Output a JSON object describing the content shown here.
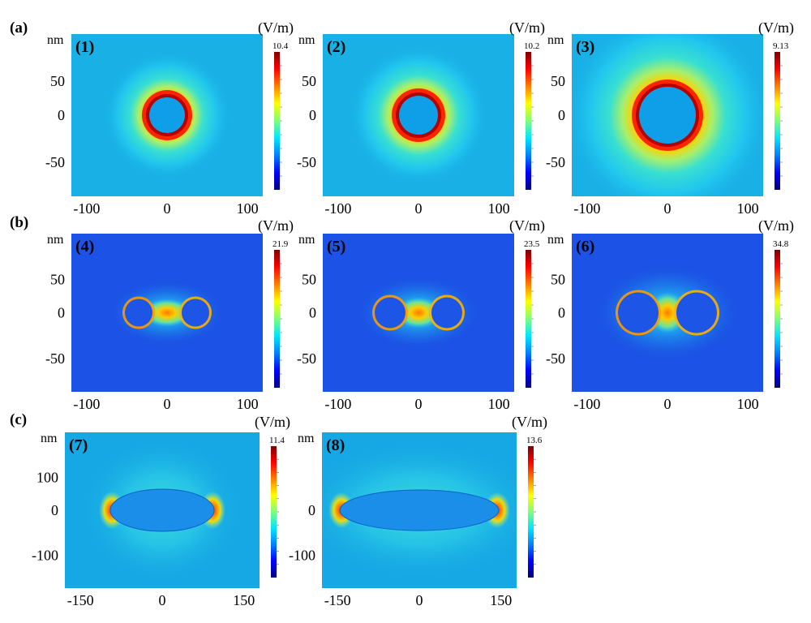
{
  "figure": {
    "row_labels": [
      "(a)",
      "(b)",
      "(c)"
    ],
    "panels": [
      {
        "label": "(1)",
        "row": "a",
        "field": "ring",
        "inner_color": "#0f9fe8",
        "x_ticks": [
          "-100",
          "0",
          "100"
        ],
        "y_ticks": [
          "50",
          "0",
          "-50"
        ],
        "axis_unit": "nm",
        "colorbar_unit": "(V/m)",
        "colorbar_max": "10.4"
      },
      {
        "label": "(2)",
        "row": "a",
        "field": "ring",
        "inner_color": "#0f9fe8",
        "x_ticks": [
          "-100",
          "0",
          "100"
        ],
        "y_ticks": [
          "50",
          "0",
          "-50"
        ],
        "axis_unit": "nm",
        "colorbar_unit": "(V/m)",
        "colorbar_max": "10.2"
      },
      {
        "label": "(3)",
        "row": "a",
        "field": "ring",
        "inner_color": "#0f9fe8",
        "x_ticks": [
          "-100",
          "0",
          "100"
        ],
        "y_ticks": [
          "50",
          "0",
          "-50"
        ],
        "axis_unit": "nm",
        "colorbar_unit": "(V/m)",
        "colorbar_max": "9.13"
      },
      {
        "label": "(4)",
        "row": "b",
        "field": "dimer",
        "inner_color": "#1d55e6",
        "x_ticks": [
          "-100",
          "0",
          "100"
        ],
        "y_ticks": [
          "50",
          "0",
          "-50"
        ],
        "axis_unit": "nm",
        "colorbar_unit": "(V/m)",
        "colorbar_max": "21.9"
      },
      {
        "label": "(5)",
        "row": "b",
        "field": "dimer",
        "inner_color": "#1d55e6",
        "x_ticks": [
          "-100",
          "0",
          "100"
        ],
        "y_ticks": [
          "50",
          "0",
          "-50"
        ],
        "axis_unit": "nm",
        "colorbar_unit": "(V/m)",
        "colorbar_max": "23.5"
      },
      {
        "label": "(6)",
        "row": "b",
        "field": "dimer",
        "inner_color": "#1d55e6",
        "x_ticks": [
          "-100",
          "0",
          "100"
        ],
        "y_ticks": [
          "50",
          "0",
          "-50"
        ],
        "axis_unit": "nm",
        "colorbar_unit": "(V/m)",
        "colorbar_max": "34.8"
      },
      {
        "label": "(7)",
        "row": "c",
        "field": "ellipse",
        "inner_color": "#1a8ee8",
        "x_ticks": [
          "-150",
          "0",
          "150"
        ],
        "y_ticks": [
          "100",
          "0",
          "-100"
        ],
        "axis_unit": "nm",
        "colorbar_unit": "(V/m)",
        "colorbar_max": "11.4"
      },
      {
        "label": "(8)",
        "row": "c",
        "field": "ellipse",
        "inner_color": "#1a8ee8",
        "x_ticks": [
          "-150",
          "0",
          "150"
        ],
        "y_ticks": [
          "",
          "0",
          "-100"
        ],
        "axis_unit": "nm",
        "colorbar_unit": "(V/m)",
        "colorbar_max": "13.6"
      }
    ],
    "colormap": [
      "#00007f",
      "#0000ff",
      "#0080ff",
      "#00e5ff",
      "#7dff7a",
      "#ffff00",
      "#ff8000",
      "#ff0000",
      "#7f0000"
    ],
    "background_colors": {
      "ring": "#19b0e6",
      "dimer": "#1c52e6",
      "ellipse": "#16a8e4"
    }
  }
}
